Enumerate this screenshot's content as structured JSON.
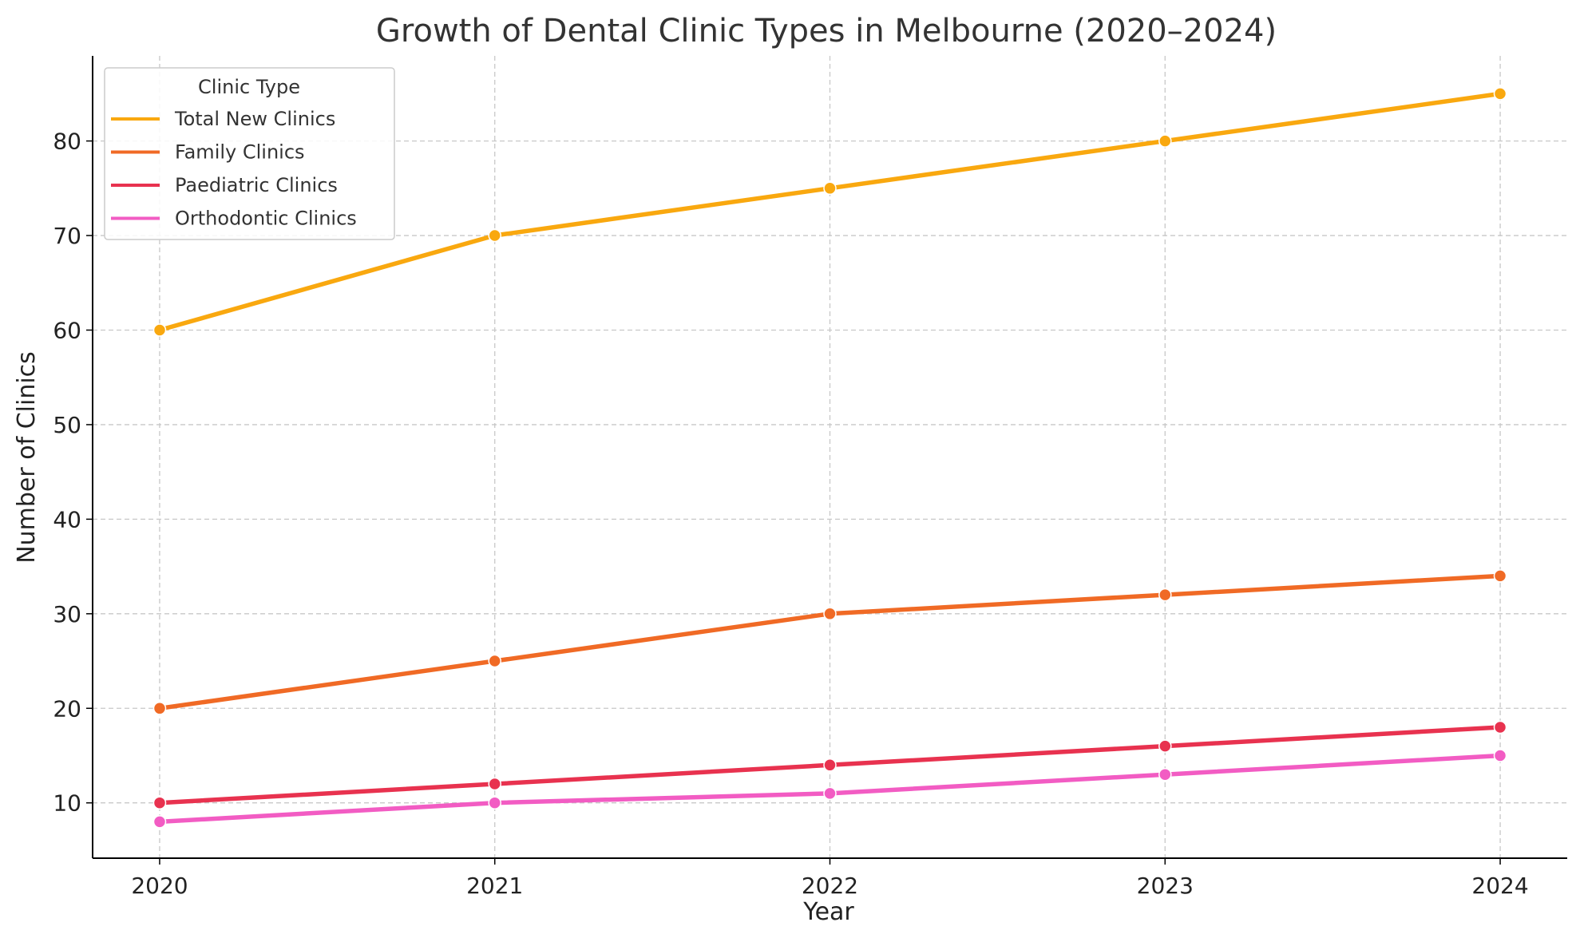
{
  "chart_data": {
    "type": "line",
    "title": "Growth of Dental Clinic Types in Melbourne (2020–2024)",
    "xlabel": "Year",
    "ylabel": "Number of Clinics",
    "x": [
      "2020",
      "2021",
      "2022",
      "2023",
      "2024"
    ],
    "xlim": [
      2019.8,
      2024.2
    ],
    "ylim": [
      4.15,
      89.0
    ],
    "yticks": [
      10,
      20,
      30,
      40,
      50,
      60,
      70,
      80
    ],
    "grid": true,
    "legend": {
      "title": "Clinic Type",
      "placement": "top-left"
    },
    "series": [
      {
        "name": "Total New Clinics",
        "color": "#F9A80F",
        "values": [
          60,
          70,
          75,
          80,
          85
        ]
      },
      {
        "name": "Family Clinics",
        "color": "#F06A25",
        "values": [
          20,
          25,
          30,
          32,
          34
        ]
      },
      {
        "name": "Paediatric Clinics",
        "color": "#E8324F",
        "values": [
          10,
          12,
          14,
          16,
          18
        ]
      },
      {
        "name": "Orthodontic Clinics",
        "color": "#F25CC3",
        "values": [
          8,
          10,
          11,
          13,
          15
        ]
      }
    ]
  }
}
